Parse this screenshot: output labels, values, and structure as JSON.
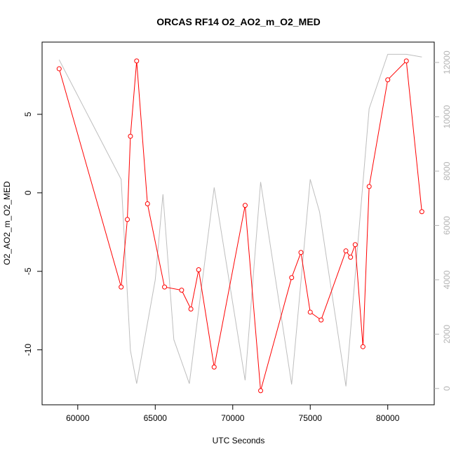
{
  "chart_data": {
    "type": "line",
    "title": "ORCAS RF14 O2_AO2_m_O2_MED",
    "xlabel": "UTC Seconds",
    "ylabel": "O2_AO2_m_O2_MED",
    "xlim": [
      57700,
      83000
    ],
    "ylim": [
      -13.5,
      9.6
    ],
    "y2lim": [
      -600,
      12750
    ],
    "grid": false,
    "x_ticks": [
      60000,
      65000,
      70000,
      75000,
      80000
    ],
    "y_ticks": [
      -10,
      -5,
      0,
      5
    ],
    "y2_ticks": [
      0,
      2000,
      4000,
      6000,
      8000,
      10000,
      12000
    ],
    "x_tick_labels": [
      "60000",
      "65000",
      "70000",
      "75000",
      "80000"
    ],
    "y_tick_labels": [
      "-10",
      "-5",
      "0",
      "5"
    ],
    "y2_tick_labels": [
      "0",
      "2000",
      "4000",
      "6000",
      "8000",
      "10000",
      "12000"
    ],
    "colors": {
      "primary": "#ff0000",
      "secondary": "#bebebe",
      "axis": "#000000",
      "right_axis": "#b4b4b4"
    },
    "series": [
      {
        "axis": "left",
        "style": "line+open-circles",
        "color": "#ff0000",
        "x": [
          58800,
          62800,
          63200,
          63400,
          63800,
          64500,
          65600,
          66700,
          67300,
          67800,
          68800,
          70800,
          71800,
          73800,
          74400,
          75000,
          75700,
          77300,
          77600,
          77900,
          78400,
          78800,
          80000,
          81200,
          82200
        ],
        "y": [
          7.9,
          -6.0,
          -1.7,
          3.6,
          8.4,
          -0.7,
          -6.0,
          -6.2,
          -7.4,
          -4.9,
          -11.1,
          -0.8,
          -12.6,
          -5.4,
          -3.8,
          -7.6,
          -8.1,
          -3.7,
          -4.1,
          -3.3,
          -9.8,
          0.4,
          7.2,
          8.4,
          -1.2
        ]
      },
      {
        "axis": "right",
        "style": "line",
        "color": "#bebebe",
        "x": [
          58800,
          62800,
          63400,
          63800,
          65000,
          65500,
          66200,
          67200,
          68800,
          70800,
          71800,
          73800,
          75000,
          75600,
          77300,
          78800,
          80000,
          81200,
          82200
        ],
        "y": [
          12100,
          7700,
          1400,
          180,
          4000,
          7150,
          1800,
          180,
          7400,
          300,
          7600,
          150,
          7700,
          6500,
          80,
          10300,
          12300,
          12300,
          12200
        ]
      }
    ]
  }
}
